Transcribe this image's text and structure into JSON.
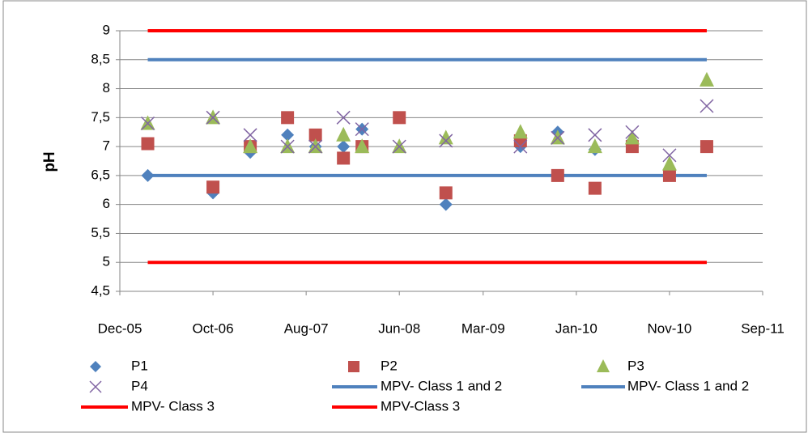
{
  "chart_data": {
    "type": "scatter",
    "y_label": "pH",
    "ylim": [
      4.5,
      9
    ],
    "yticks": [
      {
        "value": 4.5,
        "label": "4,5"
      },
      5,
      {
        "value": 5.5,
        "label": "5,5"
      },
      6,
      {
        "value": 6.5,
        "label": "6,5"
      },
      7,
      {
        "value": 7.5,
        "label": "7,5"
      },
      8,
      {
        "value": 8.5,
        "label": "8,5"
      },
      9
    ],
    "xlim": [
      "2005-12",
      "2011-09"
    ],
    "xticks": [
      {
        "value": "2005-12",
        "label": "Dec-05"
      },
      {
        "value": "2006-10",
        "label": "Oct-06"
      },
      {
        "value": "2007-08",
        "label": "Aug-07"
      },
      {
        "value": "2008-06",
        "label": "Jun-08"
      },
      {
        "value": "2009-03",
        "label": "Mar-09"
      },
      {
        "value": "2010-01",
        "label": "Jan-10"
      },
      {
        "value": "2010-11",
        "label": "Nov-10"
      },
      {
        "value": "2011-09",
        "label": "Sep-11"
      }
    ],
    "grid": true,
    "legend": "bottom",
    "x": [
      "2006-03",
      "2006-10",
      "2007-02",
      "2007-06",
      "2007-09",
      "2007-12",
      "2008-02",
      "2008-06",
      "2008-11",
      "2009-07",
      "2009-11",
      "2010-03",
      "2010-07",
      "2010-11",
      "2011-03"
    ],
    "series": [
      {
        "name": "P1",
        "color": "#4f81bd",
        "marker": "diamond",
        "values": [
          6.5,
          6.2,
          6.9,
          7.2,
          7.0,
          7.0,
          7.3,
          null,
          6.0,
          7.0,
          7.25,
          6.95,
          7.1,
          6.55,
          null
        ]
      },
      {
        "name": "P2",
        "color": "#c0504d",
        "marker": "square",
        "values": [
          7.05,
          6.3,
          7.0,
          7.5,
          7.2,
          6.8,
          7.0,
          7.5,
          6.2,
          7.1,
          6.5,
          6.28,
          7.0,
          6.5,
          7.0
        ]
      },
      {
        "name": "P3",
        "color": "#9bbb59",
        "marker": "triangle",
        "values": [
          7.4,
          7.5,
          7.0,
          7.0,
          7.0,
          7.2,
          7.0,
          7.0,
          7.15,
          7.25,
          7.15,
          7.0,
          7.15,
          6.7,
          8.15
        ]
      },
      {
        "name": "P4",
        "color": "#8064a2",
        "marker": "x",
        "values": [
          7.4,
          7.5,
          7.2,
          7.0,
          7.0,
          7.5,
          7.3,
          7.0,
          7.1,
          7.0,
          7.15,
          7.2,
          7.25,
          6.85,
          7.7
        ]
      },
      {
        "name": "MPV- Class 1 and 2",
        "color": "#4f81bd",
        "marker": "line",
        "x": [
          "2006-03",
          "2011-03"
        ],
        "values": [
          8.5,
          8.5
        ]
      },
      {
        "name": "MPV- Class 1 and 2",
        "color": "#4f81bd",
        "marker": "line",
        "x": [
          "2006-03",
          "2011-03"
        ],
        "values": [
          6.5,
          6.5
        ]
      },
      {
        "name": "MPV- Class 3",
        "color": "#ff0000",
        "marker": "line",
        "x": [
          "2006-03",
          "2011-03"
        ],
        "values": [
          5,
          5
        ]
      },
      {
        "name": "MPV-Class 3",
        "color": "#ff0000",
        "marker": "line",
        "x": [
          "2006-03",
          "2011-03"
        ],
        "values": [
          9,
          9
        ]
      }
    ]
  }
}
